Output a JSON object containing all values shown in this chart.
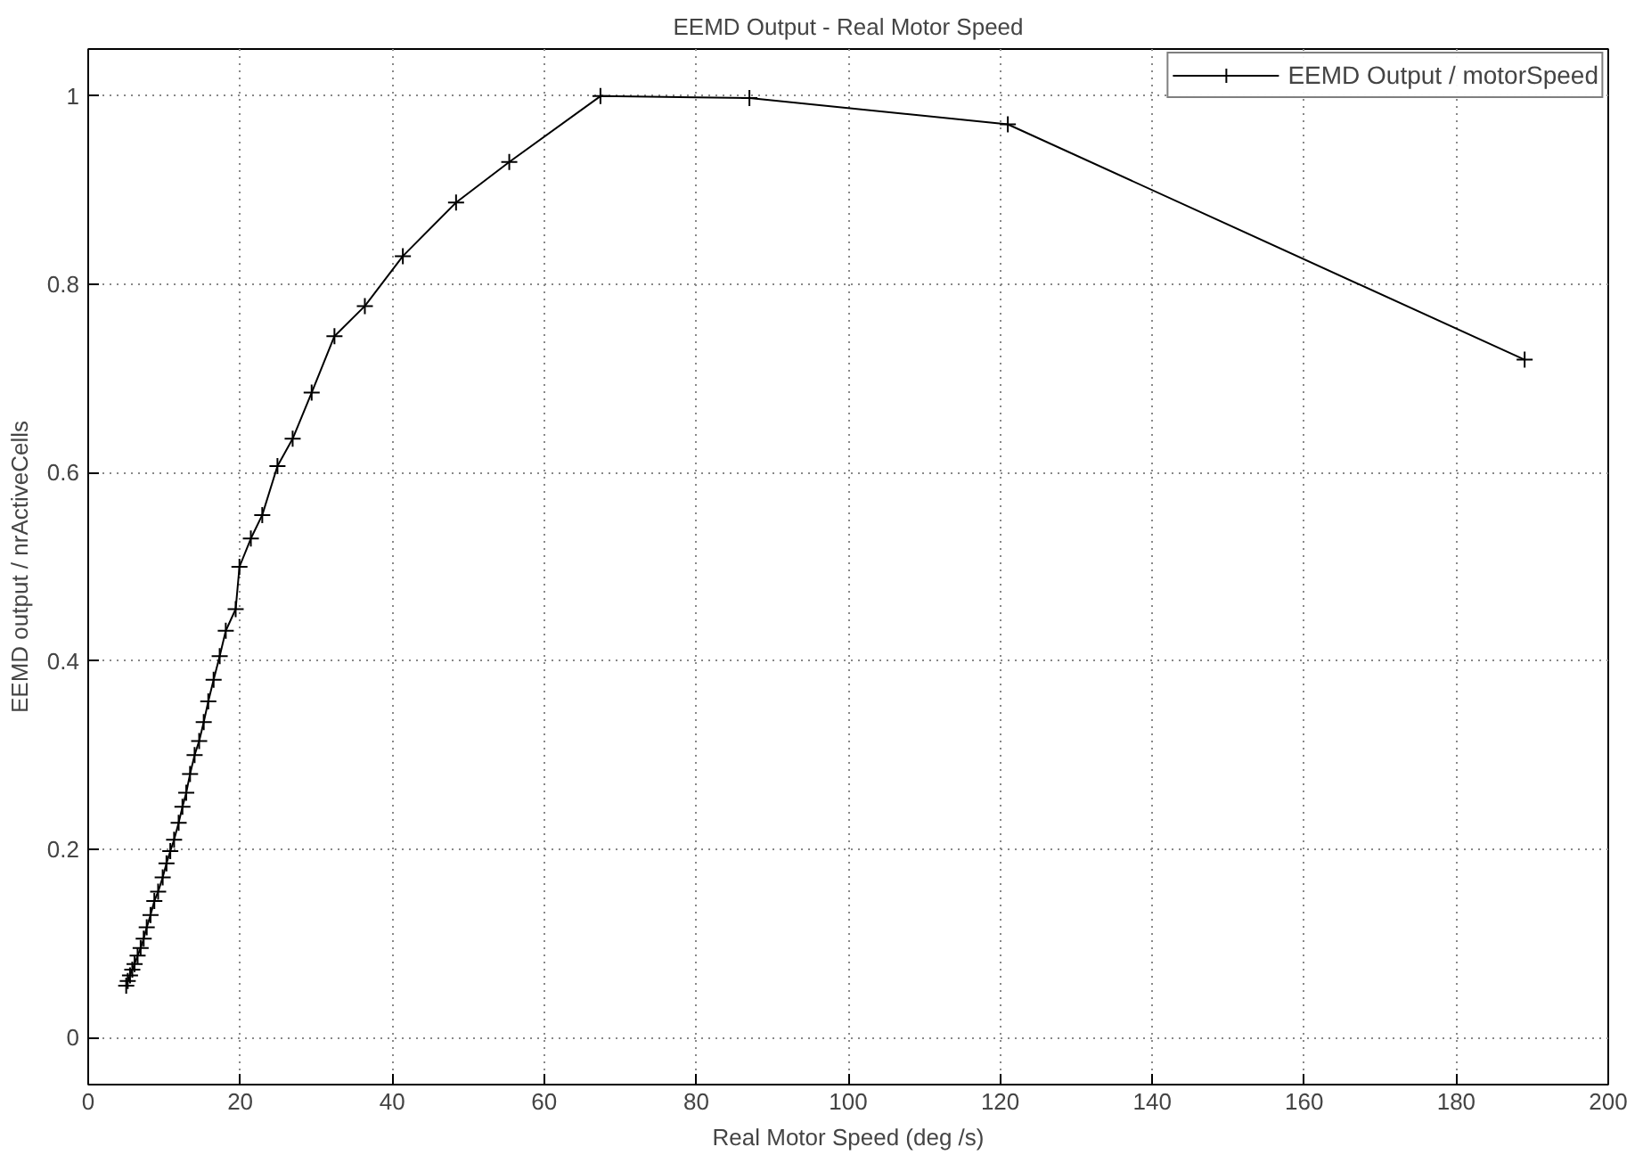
{
  "chart_data": {
    "type": "line",
    "title": "EEMD Output - Real Motor Speed",
    "xlabel": "Real Motor Speed (deg /s)",
    "ylabel": "EEMD output / nrActiveCells",
    "x": [
      5.0,
      5.2,
      5.5,
      5.8,
      6.1,
      6.5,
      6.9,
      7.3,
      7.7,
      8.2,
      8.7,
      9.2,
      9.8,
      10.3,
      10.8,
      11.3,
      11.9,
      12.4,
      12.9,
      13.4,
      14.0,
      14.6,
      15.2,
      15.8,
      16.5,
      17.3,
      18.1,
      19.4,
      19.9,
      21.4,
      22.9,
      24.9,
      26.9,
      29.4,
      32.4,
      36.4,
      41.4,
      48.4,
      55.4,
      67.4,
      87,
      121,
      189
    ],
    "series": [
      {
        "name": "EEMD Output / motorSpeed",
        "color": "#000000",
        "values": [
          0.055,
          0.06,
          0.066,
          0.072,
          0.078,
          0.087,
          0.095,
          0.105,
          0.117,
          0.13,
          0.145,
          0.155,
          0.17,
          0.185,
          0.198,
          0.21,
          0.228,
          0.245,
          0.26,
          0.28,
          0.3,
          0.315,
          0.335,
          0.357,
          0.38,
          0.405,
          0.432,
          0.455,
          0.5,
          0.53,
          0.555,
          0.607,
          0.636,
          0.685,
          0.745,
          0.777,
          0.83,
          0.887,
          0.93,
          1.0,
          0.998,
          0.97,
          0.72
        ]
      }
    ],
    "xlim": [
      0,
      200
    ],
    "xticks": [
      0,
      20,
      40,
      60,
      80,
      100,
      120,
      140,
      160,
      180,
      200
    ],
    "ylim": [
      -0.05,
      1.05
    ],
    "yticks": [
      0,
      0.2,
      0.4,
      0.6,
      0.8,
      1
    ],
    "grid": true,
    "legend": "top right",
    "marker": "cross",
    "line_style": "solid"
  }
}
